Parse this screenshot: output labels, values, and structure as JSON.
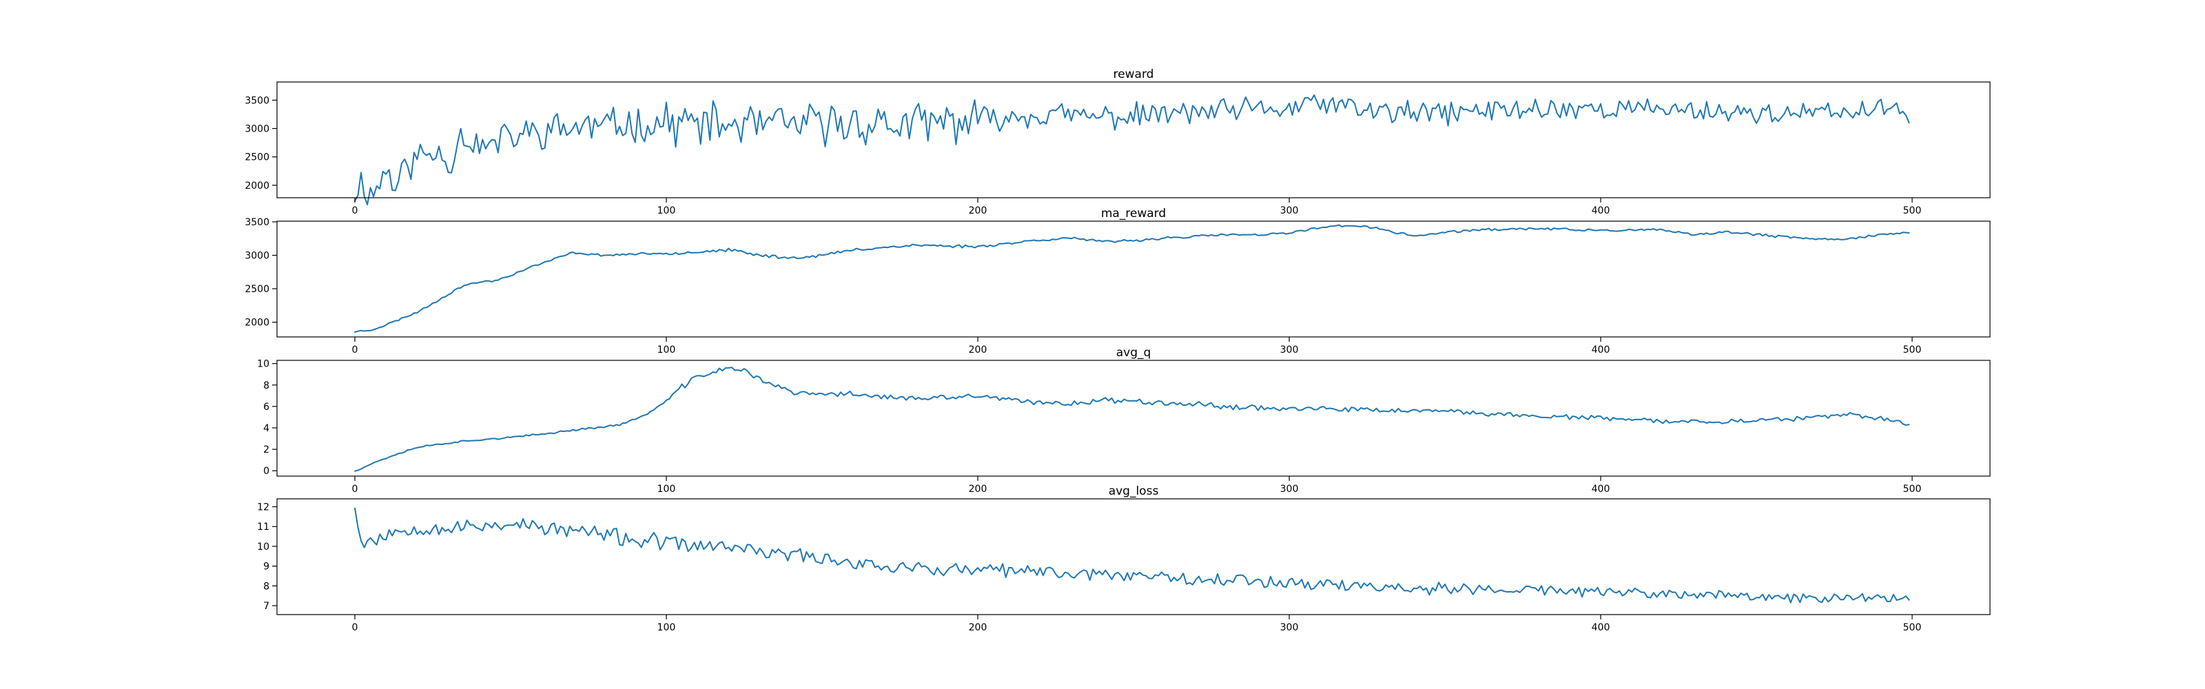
{
  "chart_data": [
    {
      "type": "line",
      "title": "reward",
      "xlabel": "",
      "ylabel": "",
      "xlim": [
        -25,
        525
      ],
      "ylim": [
        1780,
        3820
      ],
      "xticks": [
        0,
        100,
        200,
        300,
        400,
        500
      ],
      "yticks": [
        2000,
        2500,
        3000,
        3500
      ],
      "grid": false,
      "color": "#1f77b4",
      "anchors": {
        "x": [
          0,
          2,
          5,
          8,
          10,
          13,
          16,
          20,
          25,
          28,
          30,
          33,
          37,
          42,
          47,
          55,
          65,
          80,
          100,
          120,
          140,
          160,
          180,
          200,
          220,
          240,
          260,
          280,
          300,
          310,
          320,
          340,
          360,
          380,
          400,
          420,
          440,
          460,
          480,
          499
        ],
        "y": [
          1900,
          2050,
          1850,
          2000,
          2350,
          1950,
          2300,
          2500,
          2550,
          2650,
          2250,
          2900,
          2800,
          2650,
          2800,
          2900,
          3000,
          3050,
          3100,
          3050,
          3050,
          3100,
          3050,
          3150,
          3250,
          3200,
          3250,
          3300,
          3350,
          3450,
          3350,
          3250,
          3300,
          3350,
          3350,
          3350,
          3300,
          3250,
          3300,
          3350
        ]
      },
      "noise": {
        "amplitude": [
          520,
          650,
          380,
          380,
          300
        ],
        "seed": 11
      },
      "end_value": 3100
    },
    {
      "type": "line",
      "title": "ma_reward",
      "xlabel": "",
      "ylabel": "",
      "xlim": [
        -25,
        525
      ],
      "ylim": [
        1780,
        3510
      ],
      "xticks": [
        0,
        100,
        200,
        300,
        400,
        500
      ],
      "yticks": [
        2000,
        2500,
        3000,
        3500
      ],
      "grid": false,
      "color": "#1f77b4",
      "anchors": {
        "x": [
          0,
          5,
          10,
          20,
          25,
          30,
          35,
          40,
          45,
          50,
          55,
          60,
          65,
          70,
          80,
          90,
          100,
          110,
          120,
          130,
          135,
          140,
          150,
          160,
          170,
          180,
          190,
          200,
          210,
          220,
          230,
          240,
          250,
          260,
          270,
          280,
          290,
          300,
          310,
          320,
          330,
          335,
          340,
          350,
          360,
          380,
          400,
          420,
          430,
          440,
          450,
          460,
          470,
          480,
          490,
          499
        ],
        "y": [
          1860,
          1880,
          1960,
          2150,
          2280,
          2420,
          2550,
          2600,
          2620,
          2700,
          2800,
          2880,
          2960,
          3040,
          3000,
          3020,
          3030,
          3050,
          3080,
          3000,
          2980,
          2960,
          3000,
          3080,
          3120,
          3150,
          3140,
          3130,
          3180,
          3230,
          3260,
          3200,
          3220,
          3260,
          3280,
          3310,
          3300,
          3330,
          3420,
          3450,
          3390,
          3330,
          3290,
          3340,
          3380,
          3400,
          3370,
          3380,
          3300,
          3350,
          3310,
          3270,
          3240,
          3250,
          3310,
          3330
        ]
      },
      "noise": {
        "amplitude": [
          25,
          40,
          35,
          30,
          30
        ],
        "seed": 23
      }
    },
    {
      "type": "line",
      "title": "avg_q",
      "xlabel": "",
      "ylabel": "",
      "xlim": [
        -25,
        525
      ],
      "ylim": [
        -0.5,
        10.3
      ],
      "xticks": [
        0,
        100,
        200,
        300,
        400,
        500
      ],
      "yticks": [
        0,
        2,
        4,
        6,
        8,
        10
      ],
      "grid": false,
      "color": "#1f77b4",
      "anchors": {
        "x": [
          0,
          5,
          10,
          15,
          20,
          30,
          40,
          50,
          60,
          70,
          80,
          85,
          90,
          95,
          100,
          105,
          110,
          115,
          120,
          125,
          130,
          140,
          150,
          160,
          170,
          180,
          190,
          200,
          210,
          220,
          230,
          240,
          260,
          280,
          300,
          320,
          340,
          360,
          380,
          400,
          420,
          440,
          460,
          470,
          480,
          490,
          499
        ],
        "y": [
          0,
          0.6,
          1.2,
          1.7,
          2.2,
          2.6,
          2.9,
          3.1,
          3.4,
          3.8,
          4.1,
          4.3,
          4.8,
          5.5,
          6.5,
          7.8,
          8.8,
          9.2,
          9.6,
          9.3,
          8.6,
          7.3,
          7.1,
          7.2,
          6.9,
          6.7,
          6.8,
          7.0,
          6.6,
          6.3,
          6.3,
          6.6,
          6.4,
          6.0,
          5.8,
          5.7,
          5.6,
          5.4,
          5.1,
          4.9,
          4.6,
          4.6,
          4.8,
          5.0,
          5.2,
          4.9,
          4.3
        ]
      },
      "noise": {
        "amplitude": [
          0.15,
          0.45,
          0.45,
          0.4,
          0.35
        ],
        "seed": 37
      }
    },
    {
      "type": "line",
      "title": "avg_loss",
      "xlabel": "",
      "ylabel": "",
      "xlim": [
        -25,
        525
      ],
      "ylim": [
        6.55,
        12.4
      ],
      "xticks": [
        0,
        100,
        200,
        300,
        400,
        500
      ],
      "yticks": [
        7,
        8,
        9,
        10,
        11,
        12
      ],
      "grid": false,
      "color": "#1f77b4",
      "anchors": {
        "x": [
          0,
          2,
          5,
          10,
          20,
          30,
          40,
          50,
          60,
          70,
          80,
          90,
          100,
          110,
          120,
          130,
          140,
          150,
          160,
          170,
          180,
          190,
          200,
          220,
          240,
          260,
          280,
          300,
          320,
          340,
          360,
          380,
          400,
          420,
          440,
          460,
          480,
          499
        ],
        "y": [
          12.2,
          10.2,
          10.3,
          10.6,
          11.0,
          10.9,
          11.0,
          11.2,
          10.9,
          10.8,
          10.6,
          10.3,
          10.2,
          10.0,
          10.0,
          9.7,
          9.6,
          9.4,
          9.2,
          9.0,
          8.9,
          8.8,
          8.8,
          8.7,
          8.6,
          8.5,
          8.3,
          8.2,
          8.0,
          7.9,
          7.8,
          7.8,
          7.7,
          7.6,
          7.5,
          7.4,
          7.4,
          7.4
        ]
      },
      "noise": {
        "amplitude": [
          0.7,
          0.6,
          0.6,
          0.55,
          0.45
        ],
        "seed": 53
      }
    }
  ]
}
